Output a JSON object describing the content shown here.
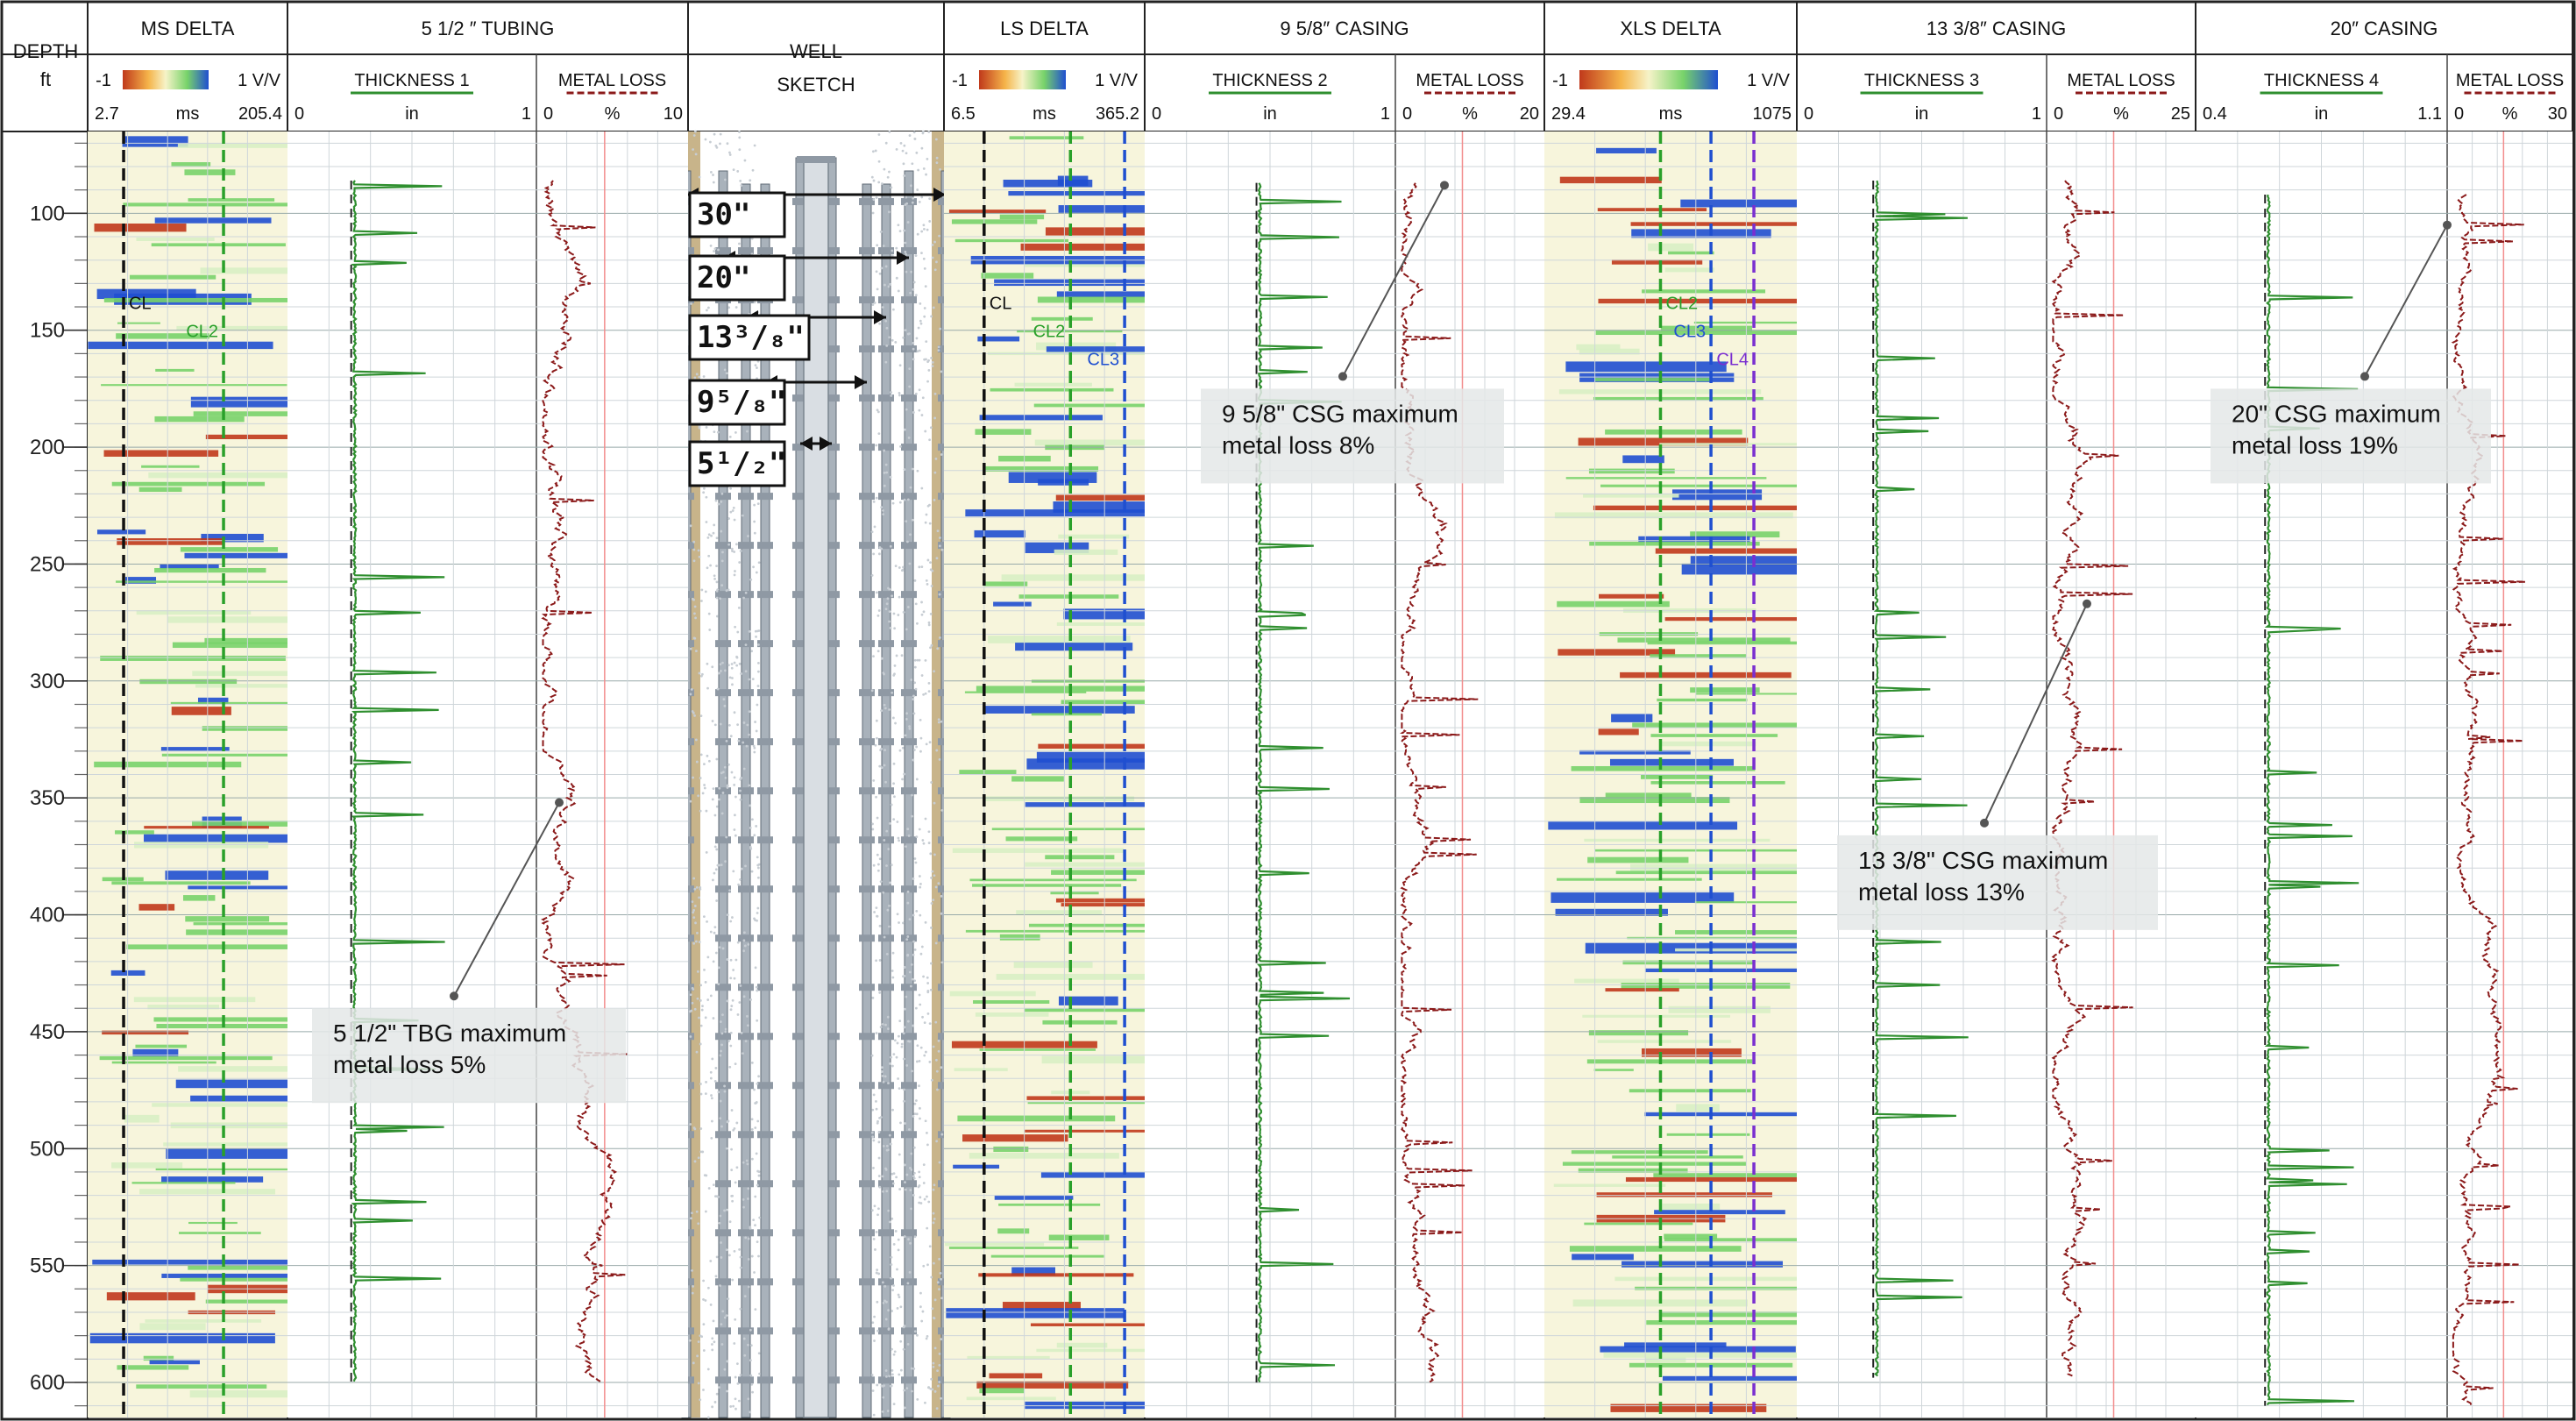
{
  "chart_data": {
    "type": "well-log",
    "depth": {
      "title": "DEPTH",
      "unit": "ft",
      "range": [
        65,
        615
      ],
      "ticks": [
        100,
        150,
        200,
        250,
        300,
        350,
        400,
        450,
        500,
        550,
        600
      ]
    },
    "tracks": [
      {
        "id": "ms",
        "kind": "delta",
        "title": "MS DELTA",
        "scale_min": "-1",
        "scale_max": "1 V/V",
        "axis_min": "2.7",
        "axis_unit": "ms",
        "axis_max": "205.4",
        "collars": [
          {
            "label": "CL",
            "color": "#111111",
            "pos": 0.18
          },
          {
            "label": "CL2",
            "color": "#2aa02a",
            "pos": 0.68
          }
        ]
      },
      {
        "id": "tubing",
        "kind": "pipe",
        "title": "5 1/2 ″ TUBING",
        "thickness": {
          "label": "THICKNESS 1",
          "min": "0",
          "unit": "in",
          "max": "1"
        },
        "loss": {
          "label": "METAL LOSS",
          "min": "0",
          "unit": "%",
          "max": "10"
        }
      },
      {
        "id": "sketch",
        "kind": "sketch",
        "title": "WELL",
        "title2": "SKETCH",
        "casings": [
          "30\"",
          "20\"",
          "13³/₈\"",
          "9⁵/₈\"",
          "5¹/₂\""
        ]
      },
      {
        "id": "ls",
        "kind": "delta",
        "title": "LS DELTA",
        "scale_min": "-1",
        "scale_max": "1 V/V",
        "axis_min": "6.5",
        "axis_unit": "ms",
        "axis_max": "365.2",
        "collars": [
          {
            "label": "CL",
            "color": "#111111",
            "pos": 0.2
          },
          {
            "label": "CL2",
            "color": "#2aa02a",
            "pos": 0.63
          },
          {
            "label": "CL3",
            "color": "#1f4fd0",
            "pos": 0.9
          }
        ]
      },
      {
        "id": "c958",
        "kind": "pipe",
        "title": "9 5/8″ CASING",
        "thickness": {
          "label": "THICKNESS 2",
          "min": "0",
          "unit": "in",
          "max": "1"
        },
        "loss": {
          "label": "METAL LOSS",
          "min": "0",
          "unit": "%",
          "max": "20"
        }
      },
      {
        "id": "xls",
        "kind": "delta",
        "title": "XLS DELTA",
        "scale_min": "-1",
        "scale_max": "1 V/V",
        "axis_min": "29.4",
        "axis_unit": "ms",
        "axis_max": "1075",
        "collars": [
          {
            "label": "CL2",
            "color": "#2aa02a",
            "pos": 0.46
          },
          {
            "label": "CL3",
            "color": "#1f4fd0",
            "pos": 0.66
          },
          {
            "label": "CL4",
            "color": "#7a2fd0",
            "pos": 0.83
          }
        ]
      },
      {
        "id": "c1338",
        "kind": "pipe",
        "title": "13 3/8″ CASING",
        "thickness": {
          "label": "THICKNESS 3",
          "min": "0",
          "unit": "in",
          "max": "1"
        },
        "loss": {
          "label": "METAL LOSS",
          "min": "0",
          "unit": "%",
          "max": "25"
        }
      },
      {
        "id": "c20",
        "kind": "pipe",
        "title": "20″ CASING",
        "thickness": {
          "label": "THICKNESS 4",
          "min": "0.4",
          "unit": "in",
          "max": "1.1"
        },
        "loss": {
          "label": "METAL LOSS",
          "min": "0",
          "unit": "%",
          "max": "30"
        }
      }
    ],
    "annotations": [
      {
        "track": "tubing",
        "line1": "5 1/2\" TBG maximum",
        "line2": "metal loss 5%",
        "value_pct": 5,
        "at_depth": 352,
        "box_depth": 452
      },
      {
        "track": "c958",
        "line1": "9 5/8\" CSG maximum",
        "line2": "metal loss 8%",
        "value_pct": 8,
        "at_depth": 88,
        "box_depth": 187
      },
      {
        "track": "c1338",
        "line1": "13 3/8\" CSG maximum",
        "line2": "metal loss 13%",
        "value_pct": 13,
        "at_depth": 267,
        "box_depth": 378
      },
      {
        "track": "c20",
        "line1": "20\" CSG maximum",
        "line2": "metal loss 19%",
        "value_pct": 19,
        "at_depth": 105,
        "box_depth": 187
      }
    ],
    "colors": {
      "neg": "#c0391b",
      "mid": "#f6f3c8",
      "green": "#78d36a",
      "pos": "#1f4fd0",
      "thickness": "#2f8f2f",
      "loss": "#8b1a1a",
      "sand": "#c8b48a",
      "pipe": "#8f99a4"
    }
  }
}
